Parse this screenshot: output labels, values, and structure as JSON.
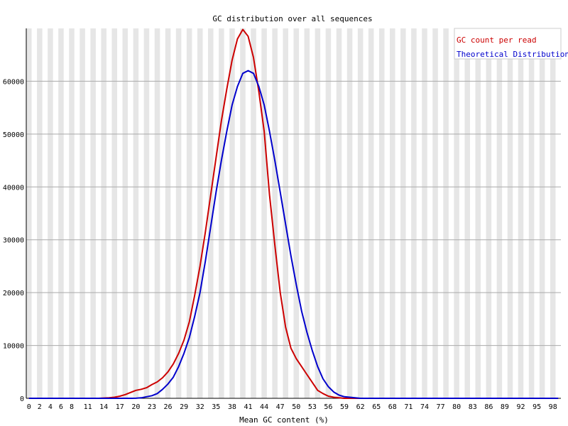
{
  "chart_data": {
    "type": "line",
    "title": "GC distribution over all sequences",
    "xlabel": "Mean GC content (%)",
    "ylabel": "",
    "xlim": [
      0,
      100
    ],
    "ylim": [
      0,
      70000
    ],
    "ytick_labels": [
      "0",
      "10000",
      "20000",
      "30000",
      "40000",
      "50000",
      "60000"
    ],
    "ytick_values": [
      0,
      10000,
      20000,
      30000,
      40000,
      50000,
      60000
    ],
    "xtick_labels": [
      "0",
      "2",
      "4",
      "6",
      "8",
      "11",
      "14",
      "17",
      "20",
      "23",
      "26",
      "29",
      "32",
      "35",
      "38",
      "41",
      "44",
      "47",
      "50",
      "53",
      "56",
      "59",
      "62",
      "65",
      "68",
      "71",
      "74",
      "77",
      "80",
      "83",
      "86",
      "89",
      "92",
      "95",
      "98"
    ],
    "xtick_values": [
      0,
      2,
      4,
      6,
      8,
      11,
      14,
      17,
      20,
      23,
      26,
      29,
      32,
      35,
      38,
      41,
      44,
      47,
      50,
      53,
      56,
      59,
      62,
      65,
      68,
      71,
      74,
      77,
      80,
      83,
      86,
      89,
      92,
      95,
      98
    ],
    "grid": true,
    "legend_position": "top-right",
    "series": [
      {
        "name": "GC count per read",
        "color": "#cc0000",
        "x": [
          0,
          1,
          2,
          3,
          4,
          5,
          6,
          7,
          8,
          9,
          10,
          11,
          12,
          13,
          14,
          15,
          16,
          17,
          18,
          19,
          20,
          21,
          22,
          23,
          24,
          25,
          26,
          27,
          28,
          29,
          30,
          31,
          32,
          33,
          34,
          35,
          36,
          37,
          38,
          39,
          40,
          41,
          42,
          43,
          44,
          45,
          46,
          47,
          48,
          49,
          50,
          51,
          52,
          53,
          54,
          55,
          56,
          57,
          58,
          59,
          60,
          61,
          62,
          63,
          64,
          65,
          66,
          67,
          68,
          69,
          70,
          71,
          72,
          73,
          74,
          75,
          76,
          77,
          78,
          79,
          80,
          81,
          82,
          83,
          84,
          85,
          86,
          87,
          88,
          89,
          90,
          91,
          92,
          93,
          94,
          95,
          96,
          97,
          98,
          99,
          100
        ],
        "values": [
          0,
          0,
          0,
          0,
          0,
          0,
          0,
          0,
          0,
          0,
          0,
          0,
          0,
          0,
          50,
          100,
          200,
          400,
          700,
          1100,
          1500,
          1700,
          2000,
          2600,
          3100,
          3900,
          5000,
          6500,
          8500,
          11000,
          14500,
          19500,
          25000,
          31500,
          38500,
          45500,
          52500,
          58500,
          64000,
          68000,
          69800,
          68500,
          64500,
          58000,
          50500,
          38500,
          29000,
          20000,
          13500,
          9500,
          7500,
          6000,
          4500,
          3000,
          1500,
          900,
          400,
          200,
          100,
          0,
          0,
          0,
          0,
          0,
          0,
          0,
          0,
          0,
          0,
          0,
          0,
          0,
          0,
          0,
          0,
          0,
          0,
          0,
          0,
          0,
          0,
          0,
          0,
          0,
          0,
          0,
          0,
          0,
          0,
          0,
          0,
          0,
          0,
          0,
          0,
          0,
          0,
          0,
          0,
          0,
          0
        ]
      },
      {
        "name": "Theoretical Distribution",
        "color": "#0000cc",
        "x": [
          0,
          1,
          2,
          3,
          4,
          5,
          6,
          7,
          8,
          9,
          10,
          11,
          12,
          13,
          14,
          15,
          16,
          17,
          18,
          19,
          20,
          21,
          22,
          23,
          24,
          25,
          26,
          27,
          28,
          29,
          30,
          31,
          32,
          33,
          34,
          35,
          36,
          37,
          38,
          39,
          40,
          41,
          42,
          43,
          44,
          45,
          46,
          47,
          48,
          49,
          50,
          51,
          52,
          53,
          54,
          55,
          56,
          57,
          58,
          59,
          60,
          61,
          62,
          63,
          64,
          65,
          66,
          67,
          68,
          69,
          70,
          71,
          72,
          73,
          74,
          75,
          76,
          77,
          78,
          79,
          80,
          81,
          82,
          83,
          84,
          85,
          86,
          87,
          88,
          89,
          90,
          91,
          92,
          93,
          94,
          95,
          96,
          97,
          98,
          99,
          100
        ],
        "values": [
          0,
          0,
          0,
          0,
          0,
          0,
          0,
          0,
          0,
          0,
          0,
          0,
          0,
          0,
          0,
          0,
          0,
          0,
          0,
          0,
          20,
          100,
          300,
          500,
          900,
          1700,
          2700,
          4000,
          6000,
          8500,
          11500,
          15500,
          20000,
          26000,
          32500,
          39000,
          45000,
          50500,
          55500,
          59000,
          61500,
          62000,
          61500,
          59000,
          55500,
          50500,
          45000,
          39000,
          33000,
          27000,
          21500,
          16500,
          12500,
          9000,
          6000,
          3700,
          2200,
          1200,
          600,
          300,
          200,
          100,
          0,
          0,
          0,
          0,
          0,
          0,
          0,
          0,
          0,
          0,
          0,
          0,
          0,
          0,
          0,
          0,
          0,
          0,
          0,
          0,
          0,
          0,
          0,
          0,
          0,
          0,
          0,
          0,
          0,
          0,
          0,
          0,
          0,
          0,
          0,
          0,
          0,
          0,
          0
        ]
      }
    ]
  }
}
